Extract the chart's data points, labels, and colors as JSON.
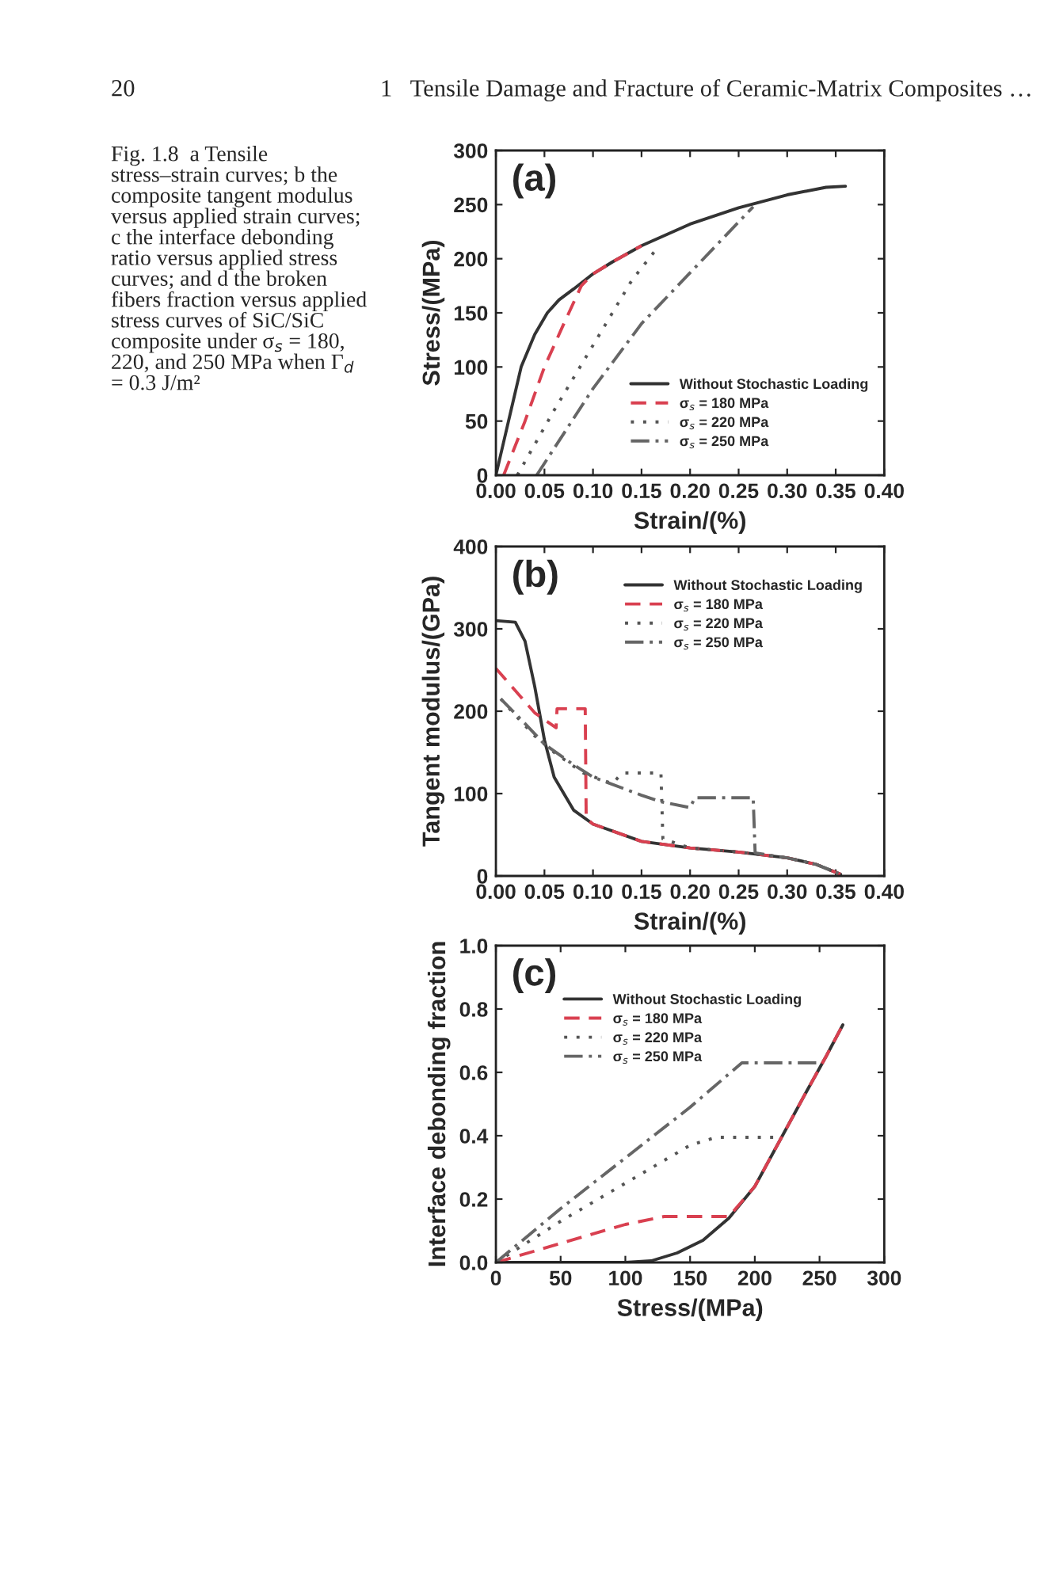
{
  "chart_data": [
    {
      "type": "line",
      "xlabel": "Strain/(%)",
      "ylabel": "Stress/(MPa)",
      "xlim": [
        0,
        0.4
      ],
      "ylim": [
        0,
        300
      ],
      "xticks": [
        {
          "value": 0,
          "label": "0.00"
        },
        {
          "value": 0.05,
          "label": "0.05"
        },
        {
          "value": 0.1,
          "label": "0.10"
        },
        {
          "value": 0.15,
          "label": "0.15"
        },
        {
          "value": 0.2,
          "label": "0.20"
        },
        {
          "value": 0.25,
          "label": "0.25"
        },
        {
          "value": 0.3,
          "label": "0.30"
        },
        {
          "value": 0.35,
          "label": "0.35"
        },
        {
          "value": 0.4,
          "label": "0.40"
        }
      ],
      "yticks": [
        0,
        50,
        100,
        150,
        200,
        250,
        300
      ],
      "grid": false,
      "legend": "bottom right",
      "marker": "none",
      "annotations": [
        "(a)",
        "20",
        "1   Tensile Damage and Fracture of Ceramic-Matrix Composites …",
        "Fig. 1.8  a Tensile\nstress–strain curves; b the\ncomposite tangent modulus\nversus applied strain curves;\nc the interface debonding\nratio versus applied stress\ncurves; and d the broken\nfibers fraction versus applied\nstress curves of SiC/SiC\ncomposite under σ$_{s}$ = 180,\n220, and 250 MPa when Γ$_{d}$\n= 0.3 J/m²"
      ],
      "series": [
        {
          "name": "Without Stochastic Loading",
          "color": "#333333",
          "line_style": "solid",
          "x": [
            0,
            0.013,
            0.026,
            0.04,
            0.053,
            0.065,
            0.08,
            0.1,
            0.12,
            0.15,
            0.2,
            0.25,
            0.3,
            0.34,
            0.36
          ],
          "values": [
            0,
            50,
            100,
            130,
            150,
            162,
            172,
            186,
            197,
            212,
            232,
            247,
            259,
            266,
            267
          ]
        },
        {
          "name": "σ$_{s}$ = 180 MPa",
          "color": "#d94050",
          "line_style": "dashed",
          "x": [
            0.008,
            0.03,
            0.05,
            0.07,
            0.088,
            0.1,
            0.12,
            0.15
          ],
          "values": [
            0,
            50,
            100,
            140,
            175,
            186,
            197,
            212
          ]
        },
        {
          "name": "σ$_{s}$ = 220 MPa",
          "color": "#555555",
          "line_style": "dotted",
          "x": [
            0.022,
            0.06,
            0.1,
            0.14,
            0.168
          ],
          "values": [
            0,
            60,
            120,
            180,
            212
          ]
        },
        {
          "name": "σ$_{s}$ = 250 MPa",
          "color": "#666666",
          "line_style": "dashdot",
          "x": [
            0.042,
            0.1,
            0.15,
            0.2,
            0.265
          ],
          "values": [
            0,
            80,
            140,
            187,
            248
          ]
        }
      ]
    },
    {
      "type": "line",
      "xlabel": "Strain/(%)",
      "ylabel": "Tangent modulus/(GPa)",
      "xlim": [
        0,
        0.4
      ],
      "ylim": [
        0,
        400
      ],
      "xticks": [
        {
          "value": 0,
          "label": "0.00"
        },
        {
          "value": 0.05,
          "label": "0.05"
        },
        {
          "value": 0.1,
          "label": "0.10"
        },
        {
          "value": 0.15,
          "label": "0.15"
        },
        {
          "value": 0.2,
          "label": "0.20"
        },
        {
          "value": 0.25,
          "label": "0.25"
        },
        {
          "value": 0.3,
          "label": "0.30"
        },
        {
          "value": 0.35,
          "label": "0.35"
        },
        {
          "value": 0.4,
          "label": "0.40"
        }
      ],
      "yticks": [
        0,
        100,
        200,
        300,
        400
      ],
      "grid": false,
      "legend": "top right",
      "marker": "none",
      "annotations": [
        "(b)"
      ],
      "series": [
        {
          "name": "Without Stochastic Loading",
          "color": "#333333",
          "line_style": "solid",
          "x": [
            0,
            0.02,
            0.03,
            0.04,
            0.05,
            0.06,
            0.08,
            0.1,
            0.15,
            0.2,
            0.25,
            0.3,
            0.33,
            0.355
          ],
          "values": [
            310,
            308,
            285,
            230,
            165,
            120,
            80,
            63,
            42,
            34,
            29,
            22,
            14,
            2
          ]
        },
        {
          "name": "σ$_{s}$ = 180 MPa",
          "color": "#d94050",
          "line_style": "dashed",
          "x": [
            0,
            0.02,
            0.04,
            0.062,
            0.063,
            0.092,
            0.093,
            0.1,
            0.15,
            0.2,
            0.25,
            0.3,
            0.33,
            0.355
          ],
          "values": [
            252,
            225,
            198,
            180,
            203,
            203,
            70,
            63,
            42,
            34,
            29,
            22,
            14,
            2
          ]
        },
        {
          "name": "σ$_{s}$ = 220 MPa",
          "color": "#555555",
          "line_style": "dotted",
          "x": [
            0.005,
            0.02,
            0.04,
            0.06,
            0.09,
            0.12,
            0.13,
            0.17,
            0.172,
            0.2,
            0.25,
            0.3,
            0.33,
            0.355
          ],
          "values": [
            215,
            195,
            170,
            150,
            125,
            112,
            125,
            125,
            45,
            34,
            29,
            22,
            14,
            2
          ]
        },
        {
          "name": "σ$_{s}$ = 250 MPa",
          "color": "#666666",
          "line_style": "dashdot",
          "x": [
            0.005,
            0.03,
            0.05,
            0.08,
            0.1,
            0.15,
            0.17,
            0.2,
            0.205,
            0.265,
            0.267,
            0.3,
            0.33,
            0.355
          ],
          "values": [
            215,
            185,
            160,
            135,
            120,
            98,
            90,
            83,
            95,
            95,
            28,
            22,
            14,
            2
          ]
        }
      ]
    },
    {
      "type": "line",
      "xlabel": "Stress/(MPa)",
      "ylabel": "Interface debonding fraction",
      "xlim": [
        0,
        300
      ],
      "ylim": [
        0,
        1.0
      ],
      "xticks": [
        0,
        50,
        100,
        150,
        200,
        250,
        300
      ],
      "yticks": [
        {
          "value": 0,
          "label": "0.0"
        },
        {
          "value": 0.2,
          "label": "0.2"
        },
        {
          "value": 0.4,
          "label": "0.4"
        },
        {
          "value": 0.6,
          "label": "0.6"
        },
        {
          "value": 0.8,
          "label": "0.8"
        },
        {
          "value": 1.0,
          "label": "1.0"
        }
      ],
      "grid": false,
      "legend": "top left",
      "marker": "none",
      "annotations": [
        "(c)"
      ],
      "series": [
        {
          "name": "Without Stochastic Loading",
          "color": "#333333",
          "line_style": "solid",
          "x": [
            0,
            100,
            120,
            140,
            160,
            180,
            200,
            220,
            240,
            255,
            268
          ],
          "values": [
            0,
            0,
            0.005,
            0.03,
            0.07,
            0.14,
            0.24,
            0.39,
            0.54,
            0.65,
            0.75
          ]
        },
        {
          "name": "σ$_{s}$ = 180 MPa",
          "color": "#d94050",
          "line_style": "dashed",
          "x": [
            0,
            50,
            100,
            130,
            180,
            200,
            220,
            240,
            255,
            268
          ],
          "values": [
            0,
            0.06,
            0.12,
            0.145,
            0.145,
            0.24,
            0.39,
            0.54,
            0.65,
            0.75
          ]
        },
        {
          "name": "σ$_{s}$ = 220 MPa",
          "color": "#555555",
          "line_style": "dotted",
          "x": [
            0,
            50,
            100,
            150,
            170,
            220
          ],
          "values": [
            0,
            0.13,
            0.25,
            0.37,
            0.395,
            0.395
          ]
        },
        {
          "name": "σ$_{s}$ = 250 MPa",
          "color": "#666666",
          "line_style": "dashdot",
          "x": [
            0,
            50,
            100,
            150,
            190,
            250
          ],
          "values": [
            0,
            0.17,
            0.33,
            0.49,
            0.63,
            0.63
          ]
        }
      ]
    }
  ]
}
